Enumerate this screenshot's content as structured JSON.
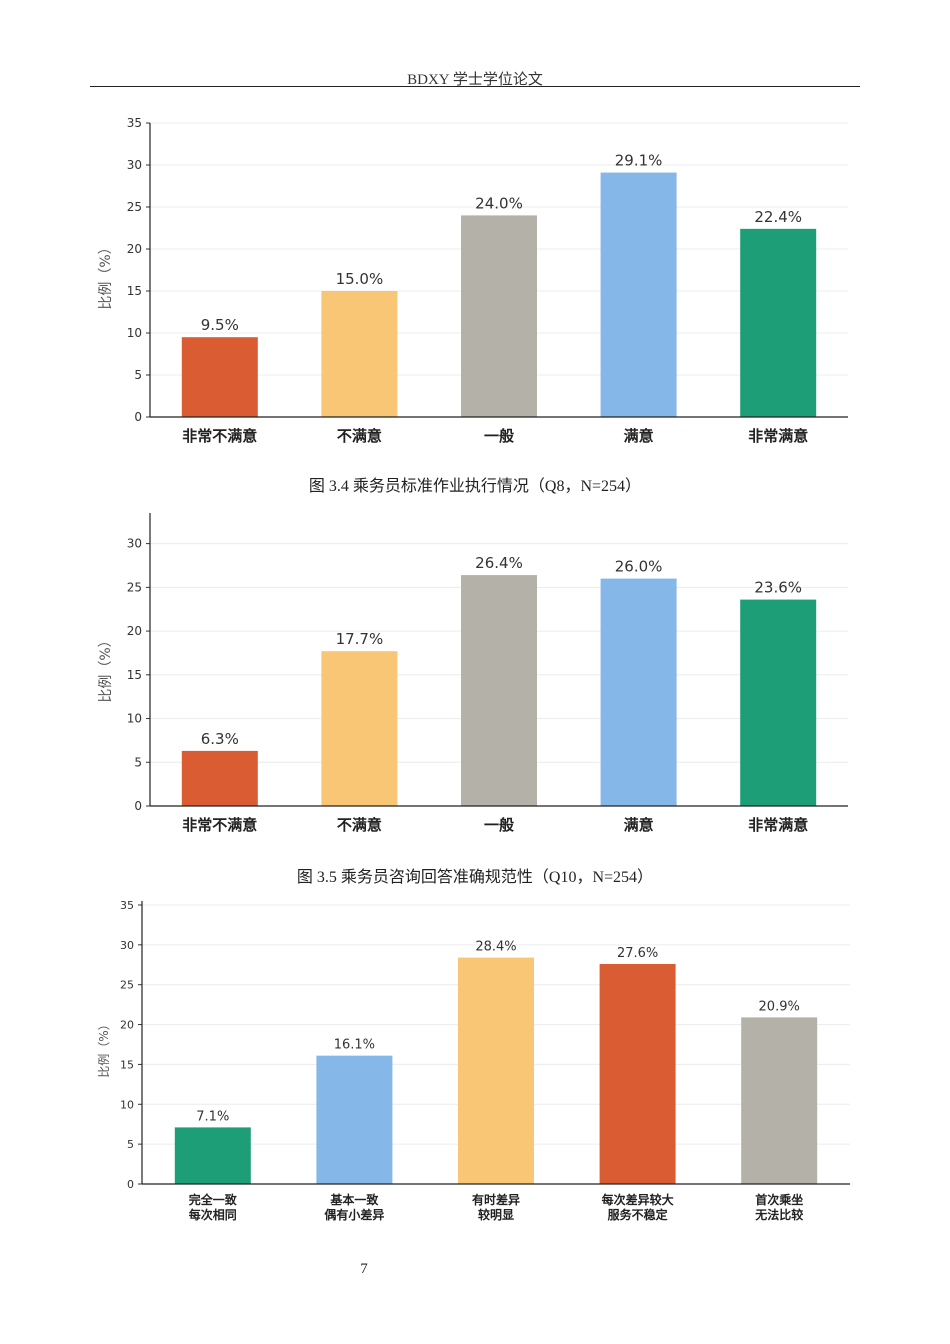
{
  "header": {
    "title": "BDXY 学士学位论文"
  },
  "captions": [
    "图 3.4 乘务员标准作业执行情况（Q8，N=254）",
    "图 3.5 乘务员咨询回答准确规范性（Q10，N=254）"
  ],
  "page_number": "7",
  "chart_data": [
    {
      "type": "bar",
      "categories": [
        "非常不满意",
        "不满意",
        "一般",
        "满意",
        "非常满意"
      ],
      "values": [
        9.5,
        15.0,
        24.0,
        29.1,
        22.4
      ],
      "data_labels": [
        "9.5%",
        "15.0%",
        "24.0%",
        "29.1%",
        "22.4%"
      ],
      "colors": [
        "#D95C32",
        "#F8C675",
        "#B4B1A8",
        "#85B7E9",
        "#1D9E76"
      ],
      "ylabel": "比例（%）",
      "ylim": [
        0,
        35
      ],
      "yticks": [
        0,
        5,
        10,
        15,
        20,
        25,
        30,
        35
      ],
      "grid": true
    },
    {
      "type": "bar",
      "categories": [
        "非常不满意",
        "不满意",
        "一般",
        "满意",
        "非常满意"
      ],
      "values": [
        6.3,
        17.7,
        26.4,
        26.0,
        23.6
      ],
      "data_labels": [
        "6.3%",
        "17.7%",
        "26.4%",
        "26.0%",
        "23.6%"
      ],
      "colors": [
        "#D95C32",
        "#F8C675",
        "#B4B1A8",
        "#85B7E9",
        "#1D9E76"
      ],
      "ylabel": "比例（%）",
      "ylim": [
        0,
        33.5
      ],
      "yticks": [
        0,
        5,
        10,
        15,
        20,
        25,
        30
      ],
      "grid": true
    },
    {
      "type": "bar",
      "categories": [
        [
          "完全一致",
          "每次相同"
        ],
        [
          "基本一致",
          "偶有小差异"
        ],
        [
          "有时差异",
          "较明显"
        ],
        [
          "每次差异较大",
          "服务不稳定"
        ],
        [
          "首次乘坐",
          "无法比较"
        ]
      ],
      "values": [
        7.1,
        16.1,
        28.4,
        27.6,
        20.9
      ],
      "data_labels": [
        "7.1%",
        "16.1%",
        "28.4%",
        "27.6%",
        "20.9%"
      ],
      "colors": [
        "#1D9E76",
        "#85B7E9",
        "#F8C675",
        "#D95C32",
        "#B4B1A8"
      ],
      "ylabel": "比例（%）",
      "ylim": [
        0,
        35.5
      ],
      "yticks": [
        0,
        5,
        10,
        15,
        20,
        25,
        30,
        35
      ],
      "grid": true
    }
  ]
}
